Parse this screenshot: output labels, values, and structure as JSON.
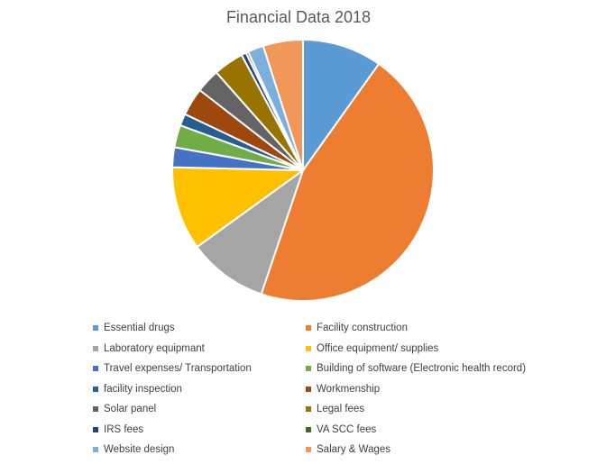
{
  "chart_data": {
    "type": "pie",
    "title": "Financial Data 2018",
    "slices": [
      {
        "label": "Essential drugs",
        "value": 10.0,
        "color": "#5B9BD5"
      },
      {
        "label": "Facility construction",
        "value": 46.0,
        "color": "#ED7D31"
      },
      {
        "label": "Laboratory equipmant",
        "value": 10.0,
        "color": "#A5A5A5"
      },
      {
        "label": "Office equipment/ supplies",
        "value": 10.5,
        "color": "#FFC000"
      },
      {
        "label": "Travel expenses/ Transportation",
        "value": 2.5,
        "color": "#4472C4"
      },
      {
        "label": "Building of software (Electronic health record)",
        "value": 2.8,
        "color": "#70AD47"
      },
      {
        "label": "facility inspection",
        "value": 1.5,
        "color": "#255E91"
      },
      {
        "label": "Workmenship",
        "value": 3.5,
        "color": "#9E480E"
      },
      {
        "label": "Solar panel",
        "value": 3.0,
        "color": "#636363"
      },
      {
        "label": "Legal fees",
        "value": 3.8,
        "color": "#997300"
      },
      {
        "label": "IRS fees",
        "value": 0.6,
        "color": "#264478"
      },
      {
        "label": "VA SCC fees",
        "value": 0.3,
        "color": "#43682B"
      },
      {
        "label": "Website design",
        "value": 2.0,
        "color": "#7CAFDD"
      },
      {
        "label": "Salary & Wages",
        "value": 5.0,
        "color": "#F1975A"
      }
    ],
    "legend_position": "bottom"
  }
}
